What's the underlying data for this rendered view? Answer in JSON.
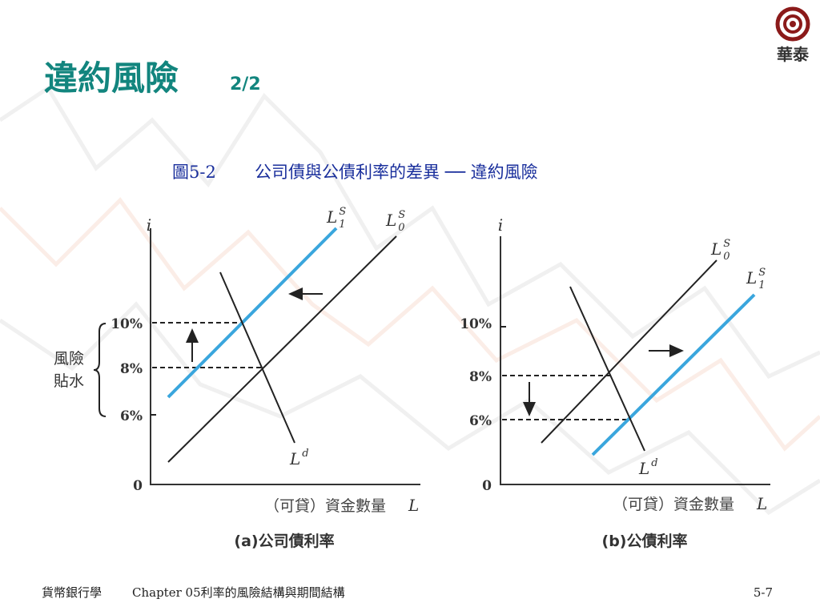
{
  "header": {
    "title": "違約風險",
    "part": "2/2",
    "logo": "華泰"
  },
  "figure": {
    "number": "圖5-2",
    "caption": "公司債與公債利率的差異 ── 違約風險"
  },
  "panels": [
    {
      "y_axis": "i",
      "ticks": [
        "10%",
        "8%",
        "6%",
        "0"
      ],
      "bracket_label": [
        "風險",
        "貼水"
      ],
      "curves": [
        {
          "base": "L",
          "sup": "S",
          "sub": "1"
        },
        {
          "base": "L",
          "sup": "S",
          "sub": "0"
        },
        {
          "base": "L",
          "sup": "d"
        }
      ],
      "x_axis": "（可貸）資金數量",
      "x_symbol": "L",
      "subtitle": "(a)公司債利率"
    },
    {
      "y_axis": "i",
      "ticks": [
        "10%",
        "8%",
        "6%",
        "0"
      ],
      "curves": [
        {
          "base": "L",
          "sup": "S",
          "sub": "0"
        },
        {
          "base": "L",
          "sup": "S",
          "sub": "1"
        },
        {
          "base": "L",
          "sup": "d"
        }
      ],
      "x_axis": "（可貸）資金數量",
      "x_symbol": "L",
      "subtitle": "(b)公債利率"
    }
  ],
  "footer": {
    "course": "貨幣銀行學",
    "chapter": "Chapter 05利率的風險結構與期間結構",
    "page": "5-7"
  }
}
